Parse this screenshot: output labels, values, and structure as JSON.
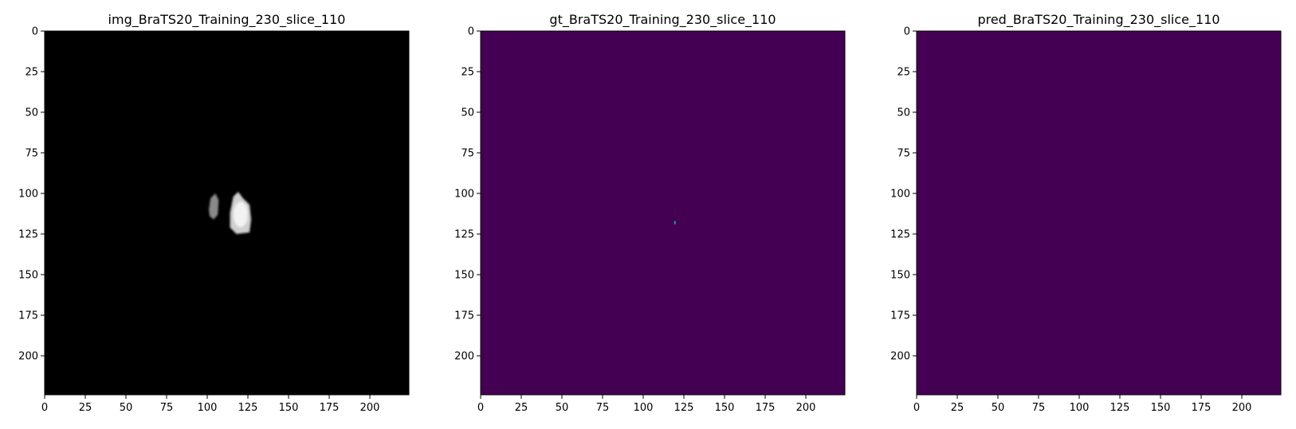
{
  "figure": {
    "panels": [
      {
        "title": "img_BraTS20_Training_230_slice_110",
        "cmap": "gray",
        "background": "#000000"
      },
      {
        "title": "gt_BraTS20_Training_230_slice_110",
        "cmap": "viridis",
        "background": "#440154",
        "highlight": "#21918c"
      },
      {
        "title": "pred_BraTS20_Training_230_slice_110",
        "cmap": "viridis",
        "background": "#440154"
      }
    ]
  },
  "chart_data": [
    {
      "type": "heatmap",
      "title": "img_BraTS20_Training_230_slice_110",
      "shape": [
        224,
        224
      ],
      "xlim": [
        0,
        224
      ],
      "ylim": [
        224,
        0
      ],
      "xticks": [
        0,
        25,
        50,
        75,
        100,
        125,
        150,
        175,
        200
      ],
      "yticks": [
        0,
        25,
        50,
        75,
        100,
        125,
        150,
        175,
        200
      ],
      "regions": [
        {
          "x_range": [
            100,
            107
          ],
          "y_range": [
            100,
            116
          ],
          "intensity": "grey"
        },
        {
          "x_range": [
            113,
            127
          ],
          "y_range": [
            99,
            125
          ],
          "intensity": "light grey / white"
        }
      ],
      "colormap": "gray"
    },
    {
      "type": "heatmap",
      "title": "gt_BraTS20_Training_230_slice_110",
      "shape": [
        224,
        224
      ],
      "xlim": [
        0,
        224
      ],
      "ylim": [
        224,
        0
      ],
      "xticks": [
        0,
        25,
        50,
        75,
        100,
        125,
        150,
        175,
        200
      ],
      "yticks": [
        0,
        25,
        50,
        75,
        100,
        125,
        150,
        175,
        200
      ],
      "regions": [
        {
          "x_range": [
            119,
            120
          ],
          "y_range": [
            117,
            119
          ],
          "value": 1
        }
      ],
      "colormap": "viridis"
    },
    {
      "type": "heatmap",
      "title": "pred_BraTS20_Training_230_slice_110",
      "shape": [
        224,
        224
      ],
      "xlim": [
        0,
        224
      ],
      "ylim": [
        224,
        0
      ],
      "xticks": [
        0,
        25,
        50,
        75,
        100,
        125,
        150,
        175,
        200
      ],
      "yticks": [
        0,
        25,
        50,
        75,
        100,
        125,
        150,
        175,
        200
      ],
      "regions": [],
      "colormap": "viridis"
    }
  ]
}
